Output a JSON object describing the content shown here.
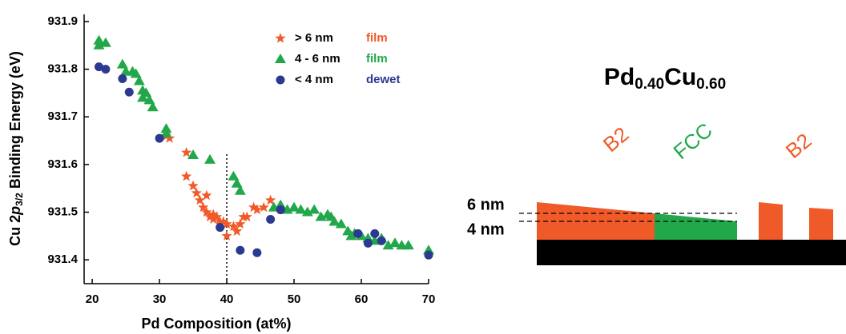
{
  "chart_data": {
    "type": "scatter",
    "x_label": "Pd Composition (at%)",
    "y_label_parts": [
      "Cu 2",
      "p",
      "3/2",
      " Binding Energy (eV)"
    ],
    "xlim": [
      18.8,
      70
    ],
    "xticks": [
      20,
      30,
      40,
      50,
      60,
      70
    ],
    "ylim": [
      931.35,
      931.915
    ],
    "yticks": [
      931.4,
      931.5,
      931.6,
      931.7,
      931.8,
      931.9
    ],
    "vline": 40,
    "series": [
      {
        "name": "> 6 nm",
        "tag": "film",
        "marker": "star",
        "color": "#f05a28",
        "x": [
          31,
          31.5,
          34,
          34,
          35,
          35.5,
          36,
          36.5,
          37,
          37,
          37.5,
          38,
          38,
          38.5,
          39,
          39,
          39.5,
          40,
          40,
          41,
          41.5,
          42,
          42.5,
          43,
          44,
          44.5,
          45.5,
          46.5
        ],
        "values": [
          931.66,
          931.655,
          931.625,
          931.575,
          931.555,
          931.54,
          931.525,
          931.51,
          931.535,
          931.5,
          931.49,
          931.495,
          931.485,
          931.49,
          931.48,
          931.475,
          931.48,
          931.45,
          931.475,
          931.47,
          931.46,
          931.475,
          931.49,
          931.49,
          931.51,
          931.505,
          931.51,
          931.525
        ]
      },
      {
        "name": "4 - 6 nm",
        "tag": "film",
        "marker": "triangle",
        "color": "#22a84a",
        "x": [
          21,
          21,
          22,
          24.5,
          25,
          26,
          26.5,
          27,
          27.5,
          27.5,
          28,
          28.5,
          29,
          31,
          31,
          35,
          37.5,
          41,
          41.5,
          42,
          47,
          48,
          49,
          50,
          51,
          52,
          53,
          54,
          55,
          55.5,
          56,
          57,
          58,
          58.5,
          59,
          60,
          61,
          62,
          63,
          64,
          65,
          66,
          67,
          70
        ],
        "values": [
          931.86,
          931.85,
          931.855,
          931.81,
          931.795,
          931.795,
          931.79,
          931.775,
          931.755,
          931.74,
          931.75,
          931.735,
          931.72,
          931.675,
          931.665,
          931.62,
          931.61,
          931.575,
          931.56,
          931.545,
          931.51,
          931.515,
          931.505,
          931.51,
          931.505,
          931.5,
          931.505,
          931.49,
          931.495,
          931.49,
          931.48,
          931.475,
          931.46,
          931.45,
          931.455,
          931.45,
          931.445,
          931.44,
          931.445,
          931.43,
          931.435,
          931.43,
          931.43,
          931.42
        ]
      },
      {
        "name": "< 4 nm",
        "tag": "dewet",
        "marker": "circle",
        "color": "#2b3990",
        "x": [
          21,
          22,
          24.5,
          25.5,
          30,
          39,
          42,
          44.5,
          46.5,
          48,
          59.5,
          61,
          62,
          63,
          70
        ],
        "values": [
          931.805,
          931.8,
          931.78,
          931.752,
          931.655,
          931.468,
          931.42,
          931.415,
          931.485,
          931.505,
          931.455,
          931.435,
          931.455,
          931.44,
          931.41
        ]
      }
    ]
  },
  "diagram": {
    "title_parts": [
      "Pd",
      "0.40",
      "Cu",
      "0.60"
    ],
    "phases": [
      "B2",
      "FCC",
      "B2"
    ],
    "thickness_labels": [
      "6 nm",
      "4 nm"
    ]
  }
}
